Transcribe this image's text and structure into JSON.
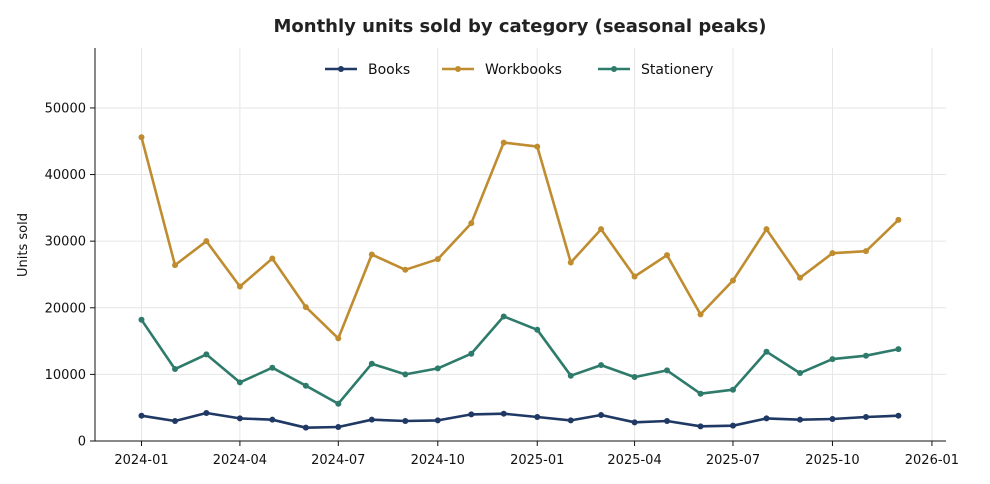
{
  "chart_data": {
    "type": "line",
    "title": "Monthly units sold by category (seasonal peaks)",
    "xlabel": "",
    "ylabel": "Units sold",
    "x": [
      "2024-01",
      "2024-02",
      "2024-03",
      "2024-04",
      "2024-05",
      "2024-06",
      "2024-07",
      "2024-08",
      "2024-09",
      "2024-10",
      "2024-11",
      "2024-12",
      "2025-01",
      "2025-02",
      "2025-03",
      "2025-04",
      "2025-05",
      "2025-06",
      "2025-07",
      "2025-08",
      "2025-09",
      "2025-10",
      "2025-11",
      "2025-12"
    ],
    "x_ticks": [
      "2024-01",
      "2024-04",
      "2024-07",
      "2024-10",
      "2025-01",
      "2025-04",
      "2025-07",
      "2025-10",
      "2026-01"
    ],
    "xlim": [
      "2023-11-19",
      "2026-01-14"
    ],
    "ylim": [
      0,
      59000
    ],
    "y_ticks": [
      0,
      10000,
      20000,
      30000,
      40000,
      50000
    ],
    "grid": true,
    "legend_position": "top-center",
    "series": [
      {
        "name": "Books",
        "color": "#1f3864",
        "values": [
          3800,
          3000,
          4200,
          3400,
          3200,
          2000,
          2100,
          3200,
          3000,
          3100,
          4000,
          4100,
          3600,
          3100,
          3900,
          2800,
          3000,
          2200,
          2300,
          3400,
          3200,
          3300,
          3600,
          3800
        ]
      },
      {
        "name": "Workbooks",
        "color": "#bf8c30",
        "values": [
          45600,
          26400,
          30000,
          23200,
          27400,
          20100,
          15400,
          28000,
          25700,
          27300,
          32700,
          44800,
          44200,
          26800,
          31800,
          24700,
          27900,
          19000,
          24100,
          31800,
          24500,
          28200,
          28500,
          33200
        ]
      },
      {
        "name": "Stationery",
        "color": "#2e7b6b",
        "values": [
          18200,
          10800,
          13000,
          8800,
          11000,
          8300,
          5600,
          11600,
          10000,
          10900,
          13100,
          18700,
          16700,
          9800,
          11400,
          9600,
          10600,
          7100,
          7700,
          13400,
          10200,
          12300,
          12800,
          13800
        ]
      }
    ]
  }
}
